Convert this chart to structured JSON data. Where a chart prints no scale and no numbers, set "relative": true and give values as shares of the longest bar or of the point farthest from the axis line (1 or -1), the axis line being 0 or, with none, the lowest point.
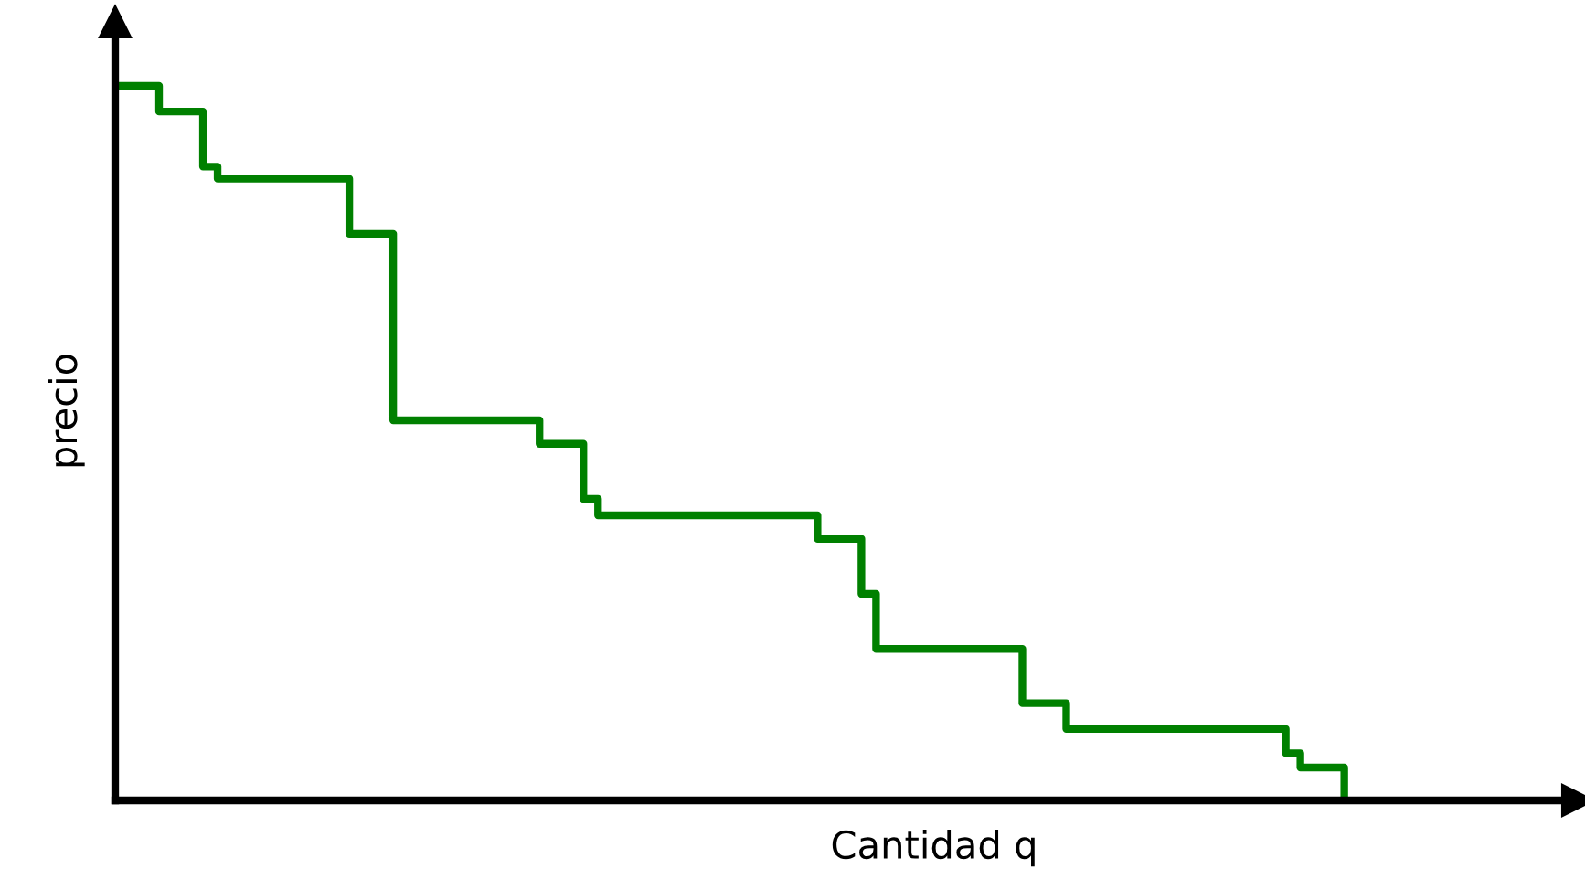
{
  "chart_data": {
    "type": "step",
    "relative": true,
    "xlabel": "Cantidad q",
    "ylabel": "precio",
    "categories": [
      null,
      null,
      null,
      null,
      null,
      null,
      null,
      null,
      null,
      null,
      null,
      null,
      null,
      null,
      null,
      null,
      null,
      null,
      null,
      null,
      null,
      null,
      null,
      null,
      null,
      null,
      null,
      null,
      null,
      null,
      null,
      null,
      null,
      null,
      null,
      null,
      null,
      null,
      null,
      null,
      null,
      null,
      null,
      null,
      null,
      null,
      null,
      null,
      null,
      null,
      null,
      null,
      null,
      null,
      null,
      null,
      null,
      null,
      null,
      null,
      null,
      null,
      null,
      null,
      null,
      null,
      null,
      null,
      null,
      null,
      null,
      null,
      null,
      null,
      null,
      null,
      null,
      null,
      null,
      null,
      null,
      null,
      null,
      null,
      null
    ],
    "series": [
      {
        "color": "#008000",
        "values": [
          1.0,
          1.0,
          1.0,
          0.964,
          0.964,
          0.964,
          0.887,
          0.87,
          0.87,
          0.87,
          0.87,
          0.87,
          0.87,
          0.87,
          0.87,
          0.87,
          0.793,
          0.793,
          0.793,
          0.532,
          0.532,
          0.532,
          0.532,
          0.532,
          0.532,
          0.532,
          0.532,
          0.532,
          0.532,
          0.499,
          0.499,
          0.499,
          0.422,
          0.399,
          0.399,
          0.399,
          0.399,
          0.399,
          0.399,
          0.399,
          0.399,
          0.399,
          0.399,
          0.399,
          0.399,
          0.399,
          0.399,
          0.399,
          0.366,
          0.366,
          0.366,
          0.289,
          0.212,
          0.212,
          0.212,
          0.212,
          0.212,
          0.212,
          0.212,
          0.212,
          0.212,
          0.212,
          0.136,
          0.136,
          0.136,
          0.1,
          0.1,
          0.1,
          0.1,
          0.1,
          0.1,
          0.1,
          0.1,
          0.1,
          0.1,
          0.1,
          0.1,
          0.1,
          0.1,
          0.1,
          0.066,
          0.046,
          0.046,
          0.046,
          0
        ]
      }
    ],
    "line_style": "solid",
    "marker": "none"
  }
}
